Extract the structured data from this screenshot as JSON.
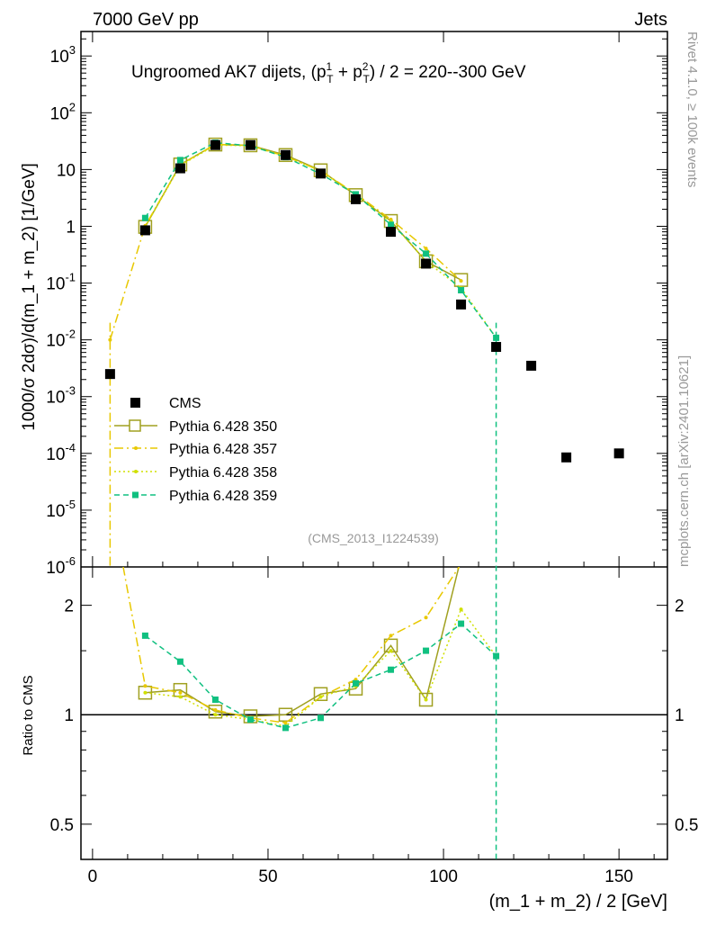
{
  "header": {
    "left": "7000 GeV pp",
    "right": "Jets"
  },
  "side": {
    "top": "Rivet 4.1.0, ≥ 100k events",
    "bottom": "mcplots.cern.ch [arXiv:2401.10621]"
  },
  "chart_data": {
    "type": "scatter",
    "title": "Ungroomed AK7 dijets, (p_T^1 + p_T^2) / 2 = 220--300 GeV",
    "title_parts": {
      "a": "Ungroomed AK7 dijets, (p",
      "b": "1",
      "c": "T",
      "d": " + p",
      "e": "2",
      "f": "T",
      "g": ") / 2 = 220--300 GeV"
    },
    "annotation": "(CMS_2013_I1224539)",
    "ylabel": "1000/σ  2dσ)/d(m_1 + m_2) [1/GeV]",
    "ratio_ylabel": "Ratio to CMS",
    "xlabel": "(m_1 + m_2) / 2 [GeV]",
    "xlim": [
      -3.3,
      163.8
    ],
    "ylim": [
      1e-06,
      2700
    ],
    "ratio_ylim": [
      0.4,
      2.55
    ],
    "yscale": "log",
    "ratio_yscale": "log",
    "xticks": [
      "0",
      "50",
      "100",
      "150"
    ],
    "yticks": [
      "10^-6",
      "10^-5",
      "10^-4",
      "10^-3",
      "10^-2",
      "10^-1",
      "1",
      "10",
      "10^2",
      "10^3"
    ],
    "ratio_yticks": [
      "0.5",
      "1",
      "2"
    ],
    "legend_position": "left-middle",
    "cms": {
      "name": "CMS",
      "x": [
        5,
        15,
        25,
        35,
        45,
        55,
        65,
        75,
        85,
        95,
        105,
        115,
        125,
        135,
        150
      ],
      "y": [
        0.0025,
        0.85,
        10.5,
        27,
        27,
        18,
        8.5,
        3.0,
        0.8,
        0.22,
        0.042,
        0.0075,
        0.0035,
        8.5e-05,
        0.0001
      ]
    },
    "series": [
      {
        "name": "Pythia 6.428 350",
        "color": "#a0a020",
        "x": [
          15,
          25,
          35,
          45,
          55,
          65,
          75,
          85,
          95,
          105
        ],
        "ratio": [
          1.15,
          1.17,
          1.02,
          0.99,
          1.0,
          1.14,
          1.18,
          1.55,
          1.1,
          2.7
        ]
      },
      {
        "name": "Pythia 6.428 357",
        "color": "#e8c800",
        "x": [
          5,
          15,
          25,
          35,
          45,
          55,
          65,
          75,
          85,
          95,
          105
        ],
        "ratio": [
          4.0,
          1.2,
          1.15,
          1.03,
          0.98,
          0.95,
          1.12,
          1.25,
          1.65,
          1.85,
          2.6
        ]
      },
      {
        "name": "Pythia 6.428 358",
        "color": "#d0e000",
        "x": [
          15,
          25,
          35,
          45,
          55,
          65,
          75,
          85,
          95,
          105,
          115
        ],
        "ratio": [
          1.15,
          1.12,
          1.0,
          0.97,
          0.93,
          1.12,
          1.2,
          1.5,
          1.1,
          1.95,
          1.45
        ]
      },
      {
        "name": "Pythia 6.428 359",
        "color": "#10c080",
        "x": [
          15,
          25,
          35,
          45,
          55,
          65,
          75,
          85,
          95,
          105,
          115
        ],
        "ratio": [
          1.65,
          1.4,
          1.1,
          0.97,
          0.92,
          0.98,
          1.22,
          1.33,
          1.5,
          1.78,
          1.45
        ]
      }
    ]
  }
}
